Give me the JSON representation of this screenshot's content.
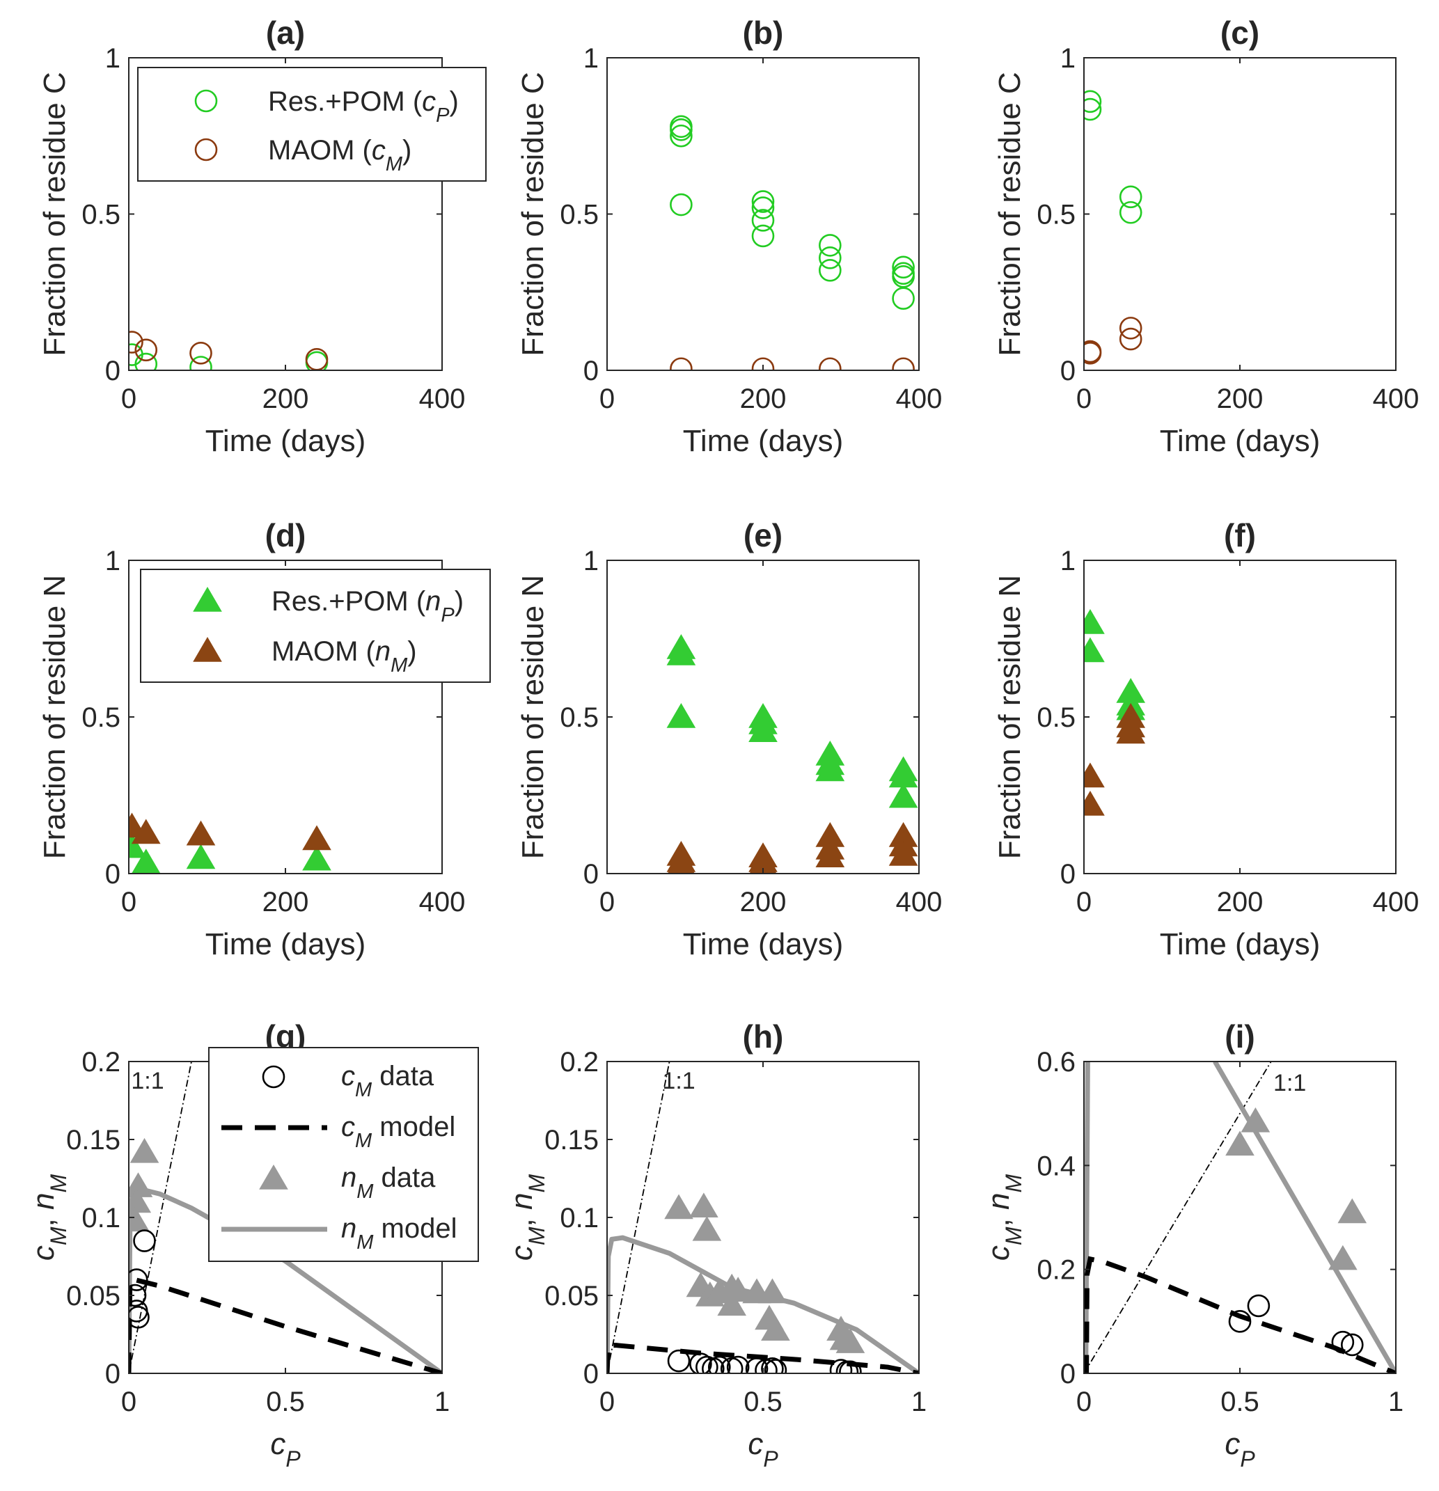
{
  "colors": {
    "pom_c": "#22cc22",
    "maom_c": "#8b3a0f",
    "pom_n": "#33cc33",
    "maom_n": "#8b4513",
    "data_gray": "#999999",
    "model_gray": "#999999",
    "black": "#000000",
    "axes": "#262626"
  },
  "labels": {
    "xlabel_time": "Time (days)",
    "ylabel_c": "Fraction of residue C",
    "ylabel_n": "Fraction of residue N",
    "xlabel_cp": "c",
    "xlabel_cp_sub": "P",
    "ylabel_g_main1": "c",
    "ylabel_g_sub1": "M",
    "ylabel_g_sep": ",",
    "ylabel_g_main2": "n",
    "ylabel_g_sub2": "M",
    "one_to_one": "1:1"
  },
  "legends": {
    "a": [
      {
        "main": "Res.+POM (",
        "var": "c",
        "sub": "P",
        "close": ")"
      },
      {
        "main": "MAOM (",
        "var": "c",
        "sub": "M",
        "close": ")"
      }
    ],
    "d": [
      {
        "main": "Res.+POM (",
        "var": "n",
        "sub": "P",
        "close": ")"
      },
      {
        "main": "MAOM (",
        "var": "n",
        "sub": "M",
        "close": ")"
      }
    ],
    "g": [
      {
        "var": "c",
        "sub": "M",
        "rest": " data"
      },
      {
        "var": "c",
        "sub": "M",
        "rest": " model"
      },
      {
        "var": "n",
        "sub": "M",
        "rest": " data"
      },
      {
        "var": "n",
        "sub": "M",
        "rest": " model"
      }
    ]
  },
  "chart_data": [
    {
      "id": "a",
      "title": "(a)",
      "type": "scatter",
      "xlim": [
        0,
        400
      ],
      "ylim": [
        0,
        1
      ],
      "xticks": [
        0,
        200,
        400
      ],
      "xticklabels": [
        "0",
        "200",
        "400"
      ],
      "yticks": [
        0,
        0.5,
        1
      ],
      "yticklabels": [
        "0",
        "0.5",
        "1"
      ],
      "xlabel": "Time (days)",
      "ylabel": "Fraction of residue C",
      "series": [
        {
          "name": "Res.+POM (cP)",
          "marker": "circle",
          "points": [
            [
              4,
              0.05
            ],
            [
              22,
              0.02
            ],
            [
              92,
              0.01
            ],
            [
              240,
              0.025
            ]
          ]
        },
        {
          "name": "MAOM (cM)",
          "marker": "circle",
          "points": [
            [
              4,
              0.09
            ],
            [
              22,
              0.065
            ],
            [
              92,
              0.055
            ],
            [
              240,
              0.035
            ]
          ]
        }
      ]
    },
    {
      "id": "b",
      "title": "(b)",
      "type": "scatter",
      "xlim": [
        0,
        400
      ],
      "ylim": [
        0,
        1
      ],
      "xticks": [
        0,
        200,
        400
      ],
      "xticklabels": [
        "0",
        "200",
        "400"
      ],
      "yticks": [
        0,
        0.5,
        1
      ],
      "yticklabels": [
        "0",
        "0.5",
        "1"
      ],
      "xlabel": "Time (days)",
      "ylabel": "Fraction of residue C",
      "series": [
        {
          "name": "Res.+POM (cP)",
          "marker": "circle",
          "points": [
            [
              95,
              0.78
            ],
            [
              95,
              0.77
            ],
            [
              95,
              0.75
            ],
            [
              95,
              0.53
            ],
            [
              200,
              0.54
            ],
            [
              200,
              0.52
            ],
            [
              200,
              0.48
            ],
            [
              200,
              0.43
            ],
            [
              286,
              0.4
            ],
            [
              286,
              0.36
            ],
            [
              286,
              0.32
            ],
            [
              380,
              0.33
            ],
            [
              380,
              0.31
            ],
            [
              380,
              0.3
            ],
            [
              380,
              0.23
            ]
          ]
        },
        {
          "name": "MAOM (cM)",
          "marker": "circle",
          "points": [
            [
              95,
              0.005
            ],
            [
              200,
              0.005
            ],
            [
              286,
              0.005
            ],
            [
              380,
              0.005
            ]
          ]
        }
      ]
    },
    {
      "id": "c",
      "title": "(c)",
      "type": "scatter",
      "xlim": [
        0,
        400
      ],
      "ylim": [
        0,
        1
      ],
      "xticks": [
        0,
        200,
        400
      ],
      "xticklabels": [
        "0",
        "200",
        "400"
      ],
      "yticks": [
        0,
        0.5,
        1
      ],
      "yticklabels": [
        "0",
        "0.5",
        "1"
      ],
      "xlabel": "Time (days)",
      "ylabel": "Fraction of residue C",
      "series": [
        {
          "name": "Res.+POM (cP)",
          "marker": "circle",
          "points": [
            [
              8,
              0.86
            ],
            [
              8,
              0.835
            ],
            [
              60,
              0.555
            ],
            [
              60,
              0.505
            ]
          ]
        },
        {
          "name": "MAOM (cM)",
          "marker": "circle",
          "points": [
            [
              8,
              0.06
            ],
            [
              8,
              0.055
            ],
            [
              60,
              0.135
            ],
            [
              60,
              0.1
            ]
          ]
        }
      ]
    },
    {
      "id": "d",
      "title": "(d)",
      "type": "scatter",
      "xlim": [
        0,
        400
      ],
      "ylim": [
        0,
        1
      ],
      "xticks": [
        0,
        200,
        400
      ],
      "xticklabels": [
        "0",
        "200",
        "400"
      ],
      "yticks": [
        0,
        0.5,
        1
      ],
      "yticklabels": [
        "0",
        "0.5",
        "1"
      ],
      "xlabel": "Time (days)",
      "ylabel": "Fraction of residue N",
      "series": [
        {
          "name": "Res.+POM (nP)",
          "marker": "triangle",
          "points": [
            [
              4,
              0.085
            ],
            [
              22,
              0.035
            ],
            [
              92,
              0.05
            ],
            [
              240,
              0.045
            ]
          ]
        },
        {
          "name": "MAOM (nM)",
          "marker": "triangle",
          "points": [
            [
              4,
              0.15
            ],
            [
              22,
              0.13
            ],
            [
              92,
              0.125
            ],
            [
              240,
              0.11
            ]
          ]
        }
      ]
    },
    {
      "id": "e",
      "title": "(e)",
      "type": "scatter",
      "xlim": [
        0,
        400
      ],
      "ylim": [
        0,
        1
      ],
      "xticks": [
        0,
        200,
        400
      ],
      "xticklabels": [
        "0",
        "200",
        "400"
      ],
      "yticks": [
        0,
        0.5,
        1
      ],
      "yticklabels": [
        "0",
        "0.5",
        "1"
      ],
      "xlabel": "Time (days)",
      "ylabel": "Fraction of residue N",
      "series": [
        {
          "name": "Res.+POM (nP)",
          "marker": "triangle",
          "points": [
            [
              95,
              0.72
            ],
            [
              95,
              0.7
            ],
            [
              95,
              0.5
            ],
            [
              200,
              0.5
            ],
            [
              200,
              0.48
            ],
            [
              200,
              0.455
            ],
            [
              286,
              0.38
            ],
            [
              286,
              0.35
            ],
            [
              286,
              0.33
            ],
            [
              380,
              0.33
            ],
            [
              380,
              0.31
            ],
            [
              380,
              0.245
            ]
          ]
        },
        {
          "name": "MAOM (nM)",
          "marker": "triangle",
          "points": [
            [
              95,
              0.06
            ],
            [
              95,
              0.04
            ],
            [
              95,
              0.03
            ],
            [
              200,
              0.055
            ],
            [
              200,
              0.04
            ],
            [
              200,
              0.03
            ],
            [
              286,
              0.12
            ],
            [
              286,
              0.08
            ],
            [
              286,
              0.055
            ],
            [
              380,
              0.12
            ],
            [
              380,
              0.09
            ],
            [
              380,
              0.06
            ]
          ]
        }
      ]
    },
    {
      "id": "f",
      "title": "(f)",
      "type": "scatter",
      "xlim": [
        0,
        400
      ],
      "ylim": [
        0,
        1
      ],
      "xticks": [
        0,
        200,
        400
      ],
      "xticklabels": [
        "0",
        "200",
        "400"
      ],
      "yticks": [
        0,
        0.5,
        1
      ],
      "yticklabels": [
        "0",
        "0.5",
        "1"
      ],
      "xlabel": "Time (days)",
      "ylabel": "Fraction of residue N",
      "series": [
        {
          "name": "Res.+POM (nP)",
          "marker": "triangle",
          "points": [
            [
              8,
              0.8
            ],
            [
              8,
              0.71
            ],
            [
              60,
              0.58
            ],
            [
              60,
              0.54
            ],
            [
              60,
              0.525
            ]
          ]
        },
        {
          "name": "MAOM (nM)",
          "marker": "triangle",
          "points": [
            [
              8,
              0.31
            ],
            [
              8,
              0.22
            ],
            [
              60,
              0.5
            ],
            [
              60,
              0.47
            ],
            [
              60,
              0.45
            ]
          ]
        }
      ]
    },
    {
      "id": "g",
      "title": "(g)",
      "type": "line+scatter",
      "xlim": [
        0,
        1
      ],
      "ylim": [
        0,
        0.2
      ],
      "xticks": [
        0,
        0.5,
        1
      ],
      "xticklabels": [
        "0",
        "0.5",
        "1"
      ],
      "yticks": [
        0,
        0.05,
        0.1,
        0.15,
        0.2
      ],
      "yticklabels": [
        "0",
        "0.05",
        "0.1",
        "0.15",
        "0.2"
      ],
      "xlabel": "cP",
      "ylabel": "cM, nM",
      "one_to_one": true,
      "one_to_one_label_pos": [
        0.06,
        0.188
      ],
      "cM_data": [
        [
          0.05,
          0.085
        ],
        [
          0.025,
          0.06
        ],
        [
          0.02,
          0.05
        ],
        [
          0.025,
          0.04
        ],
        [
          0.03,
          0.036
        ]
      ],
      "nM_data": [
        [
          0.05,
          0.142
        ],
        [
          0.03,
          0.12
        ],
        [
          0.025,
          0.11
        ],
        [
          0.02,
          0.098
        ]
      ],
      "cM_model": [
        [
          0.0,
          0.0
        ],
        [
          0.004,
          0.06
        ],
        [
          0.02,
          0.06
        ],
        [
          0.1,
          0.056
        ],
        [
          0.5,
          0.03
        ],
        [
          1.0,
          0.0
        ]
      ],
      "nM_model": [
        [
          0.0,
          0.0
        ],
        [
          0.004,
          0.098
        ],
        [
          0.012,
          0.116
        ],
        [
          0.04,
          0.118
        ],
        [
          0.1,
          0.115
        ],
        [
          0.2,
          0.106
        ],
        [
          0.5,
          0.072
        ],
        [
          1.0,
          0.0
        ]
      ]
    },
    {
      "id": "h",
      "title": "(h)",
      "type": "line+scatter",
      "xlim": [
        0,
        1
      ],
      "ylim": [
        0,
        0.2
      ],
      "xticks": [
        0,
        0.5,
        1
      ],
      "xticklabels": [
        "0",
        "0.5",
        "1"
      ],
      "yticks": [
        0,
        0.05,
        0.1,
        0.15,
        0.2
      ],
      "yticklabels": [
        "0",
        "0.05",
        "0.1",
        "0.15",
        "0.2"
      ],
      "xlabel": "cP",
      "ylabel": "cM, nM",
      "one_to_one": true,
      "one_to_one_label_pos": [
        0.23,
        0.188
      ],
      "cM_data": [
        [
          0.23,
          0.008
        ],
        [
          0.3,
          0.006
        ],
        [
          0.32,
          0.004
        ],
        [
          0.34,
          0.003
        ],
        [
          0.36,
          0.004
        ],
        [
          0.4,
          0.003
        ],
        [
          0.42,
          0.004
        ],
        [
          0.48,
          0.003
        ],
        [
          0.51,
          0.002
        ],
        [
          0.53,
          0.003
        ],
        [
          0.54,
          0.002
        ],
        [
          0.75,
          0.002
        ],
        [
          0.77,
          0.001
        ],
        [
          0.78,
          0.001
        ]
      ],
      "nM_data": [
        [
          0.23,
          0.106
        ],
        [
          0.31,
          0.107
        ],
        [
          0.32,
          0.092
        ],
        [
          0.3,
          0.056
        ],
        [
          0.33,
          0.05
        ],
        [
          0.36,
          0.052
        ],
        [
          0.4,
          0.055
        ],
        [
          0.42,
          0.053
        ],
        [
          0.4,
          0.044
        ],
        [
          0.48,
          0.052
        ],
        [
          0.53,
          0.052
        ],
        [
          0.52,
          0.035
        ],
        [
          0.54,
          0.028
        ],
        [
          0.75,
          0.028
        ],
        [
          0.76,
          0.022
        ],
        [
          0.78,
          0.02
        ]
      ],
      "cM_model": [
        [
          0.0,
          0.0
        ],
        [
          0.004,
          0.018
        ],
        [
          0.03,
          0.018
        ],
        [
          0.3,
          0.013
        ],
        [
          0.6,
          0.009
        ],
        [
          0.9,
          0.004
        ],
        [
          1.0,
          0.0
        ]
      ],
      "nM_model": [
        [
          0.0,
          0.0
        ],
        [
          0.004,
          0.075
        ],
        [
          0.015,
          0.086
        ],
        [
          0.05,
          0.087
        ],
        [
          0.2,
          0.077
        ],
        [
          0.4,
          0.055
        ],
        [
          0.6,
          0.045
        ],
        [
          0.8,
          0.028
        ],
        [
          1.0,
          0.0
        ]
      ]
    },
    {
      "id": "i",
      "title": "(i)",
      "type": "line+scatter",
      "xlim": [
        0,
        1
      ],
      "ylim": [
        0,
        0.6
      ],
      "xticks": [
        0,
        0.5,
        1
      ],
      "xticklabels": [
        "0",
        "0.5",
        "1"
      ],
      "yticks": [
        0,
        0.2,
        0.4,
        0.6
      ],
      "yticklabels": [
        "0",
        "0.2",
        "0.4",
        "0.6"
      ],
      "xlabel": "cP",
      "ylabel": "cM, nM",
      "one_to_one": true,
      "one_to_one_label_pos": [
        0.66,
        0.56
      ],
      "cM_data": [
        [
          0.5,
          0.1
        ],
        [
          0.56,
          0.13
        ],
        [
          0.83,
          0.06
        ],
        [
          0.86,
          0.055
        ]
      ],
      "nM_data": [
        [
          0.5,
          0.44
        ],
        [
          0.55,
          0.485
        ],
        [
          0.83,
          0.22
        ],
        [
          0.86,
          0.31
        ]
      ],
      "cM_model": [
        [
          0.0,
          0.0
        ],
        [
          0.008,
          0.0
        ],
        [
          0.01,
          0.19
        ],
        [
          0.02,
          0.22
        ],
        [
          0.06,
          0.215
        ],
        [
          0.2,
          0.185
        ],
        [
          0.5,
          0.11
        ],
        [
          0.8,
          0.05
        ],
        [
          1.0,
          0.0
        ]
      ],
      "nM_model": [
        [
          0.0,
          0.0
        ],
        [
          0.006,
          0.0
        ],
        [
          0.012,
          0.6
        ],
        [
          null,
          null
        ],
        [
          0.42,
          0.6
        ],
        [
          1.0,
          0.0
        ]
      ]
    }
  ]
}
